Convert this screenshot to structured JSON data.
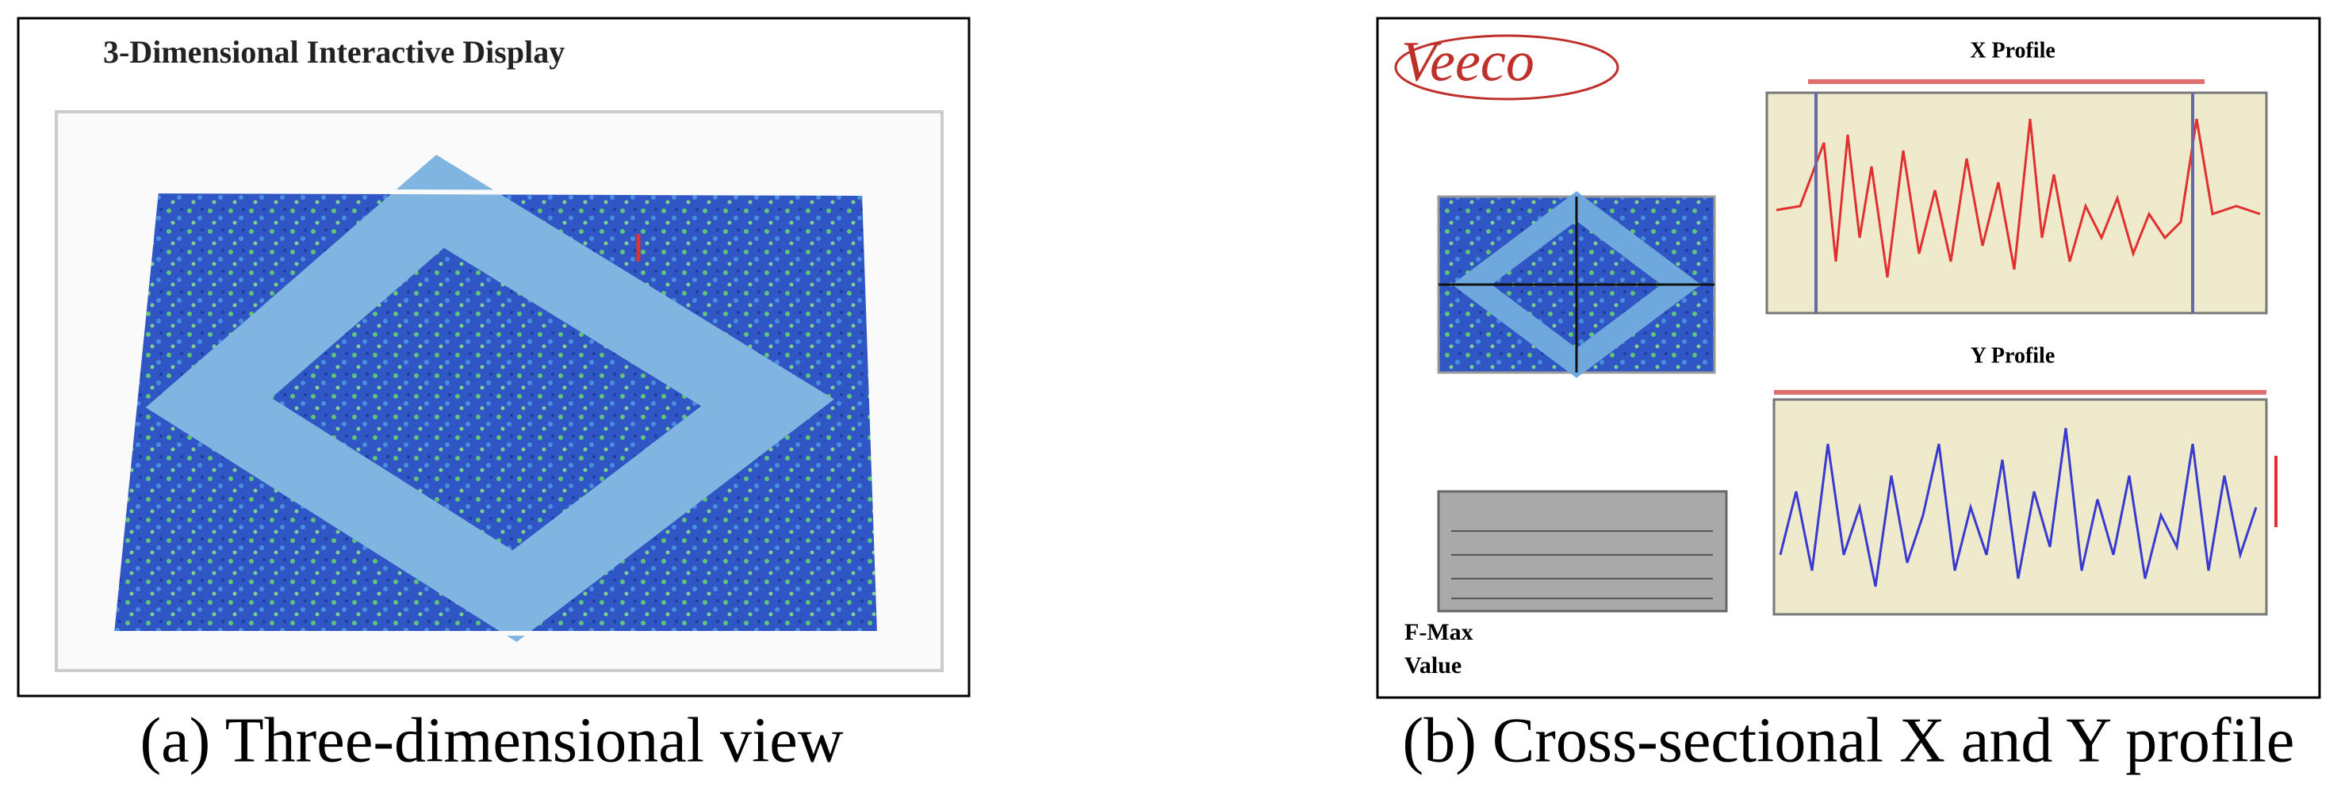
{
  "panels": [
    {
      "title": "3-Dimensional Interactive Display",
      "caption": "(a) Three-dimensional view"
    },
    {
      "logo": "Veeco",
      "x_profile_title": "X Profile",
      "y_profile_title": "Y Profile",
      "labels": [
        "F-Max",
        "Value"
      ],
      "caption": "(b) Cross-sectional X and Y profile"
    }
  ]
}
